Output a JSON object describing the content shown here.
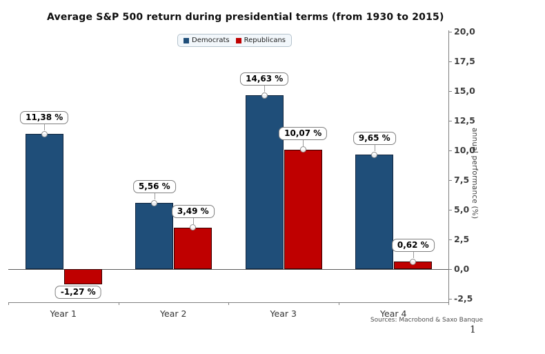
{
  "title": "Average S&P 500 return during presidential terms (from 1930 to 2015)",
  "source_note": "Sources: Macrobond & Saxo Banque",
  "page_number": "1",
  "colors": {
    "democrats_fill": "#1f4e79",
    "democrats_border": "#10243d",
    "republicans_fill": "#bf0000",
    "republicans_border": "#330000",
    "axis": "#7f7f7f"
  },
  "chart_data": {
    "type": "bar",
    "title": "Average S&P 500 return during presidential terms (from 1930 to 2015)",
    "categories": [
      "Year 1",
      "Year 2",
      "Year 3",
      "Year 4"
    ],
    "series": [
      {
        "name": "Democrats",
        "color": "#1f4e79",
        "border_color": "#10243d",
        "values": [
          11.38,
          5.56,
          14.63,
          9.65
        ],
        "labels": [
          "11,38 %",
          "5,56 %",
          "14,63 %",
          "9,65 %"
        ]
      },
      {
        "name": "Republicans",
        "color": "#bf0000",
        "border_color": "#330000",
        "values": [
          -1.27,
          3.49,
          10.07,
          0.62
        ],
        "labels": [
          "-1,27 %",
          "3,49 %",
          "10,07 %",
          "0,62 %"
        ]
      }
    ],
    "xlabel": "",
    "ylabel": "annual performance (%)",
    "ylim": [
      -2.5,
      20.0
    ],
    "yticks": [
      20.0,
      17.5,
      15.0,
      12.5,
      10.0,
      7.5,
      5.0,
      2.5,
      0.0,
      -2.5
    ],
    "ytick_labels": [
      "20,0",
      "17,5",
      "15,0",
      "12,5",
      "10,0",
      "7,5",
      "5,0",
      "2,5",
      "0,0",
      "-2,5"
    ],
    "grid": false,
    "legend_position": "top-center",
    "y_axis_side": "right",
    "decimal_separator": ","
  }
}
